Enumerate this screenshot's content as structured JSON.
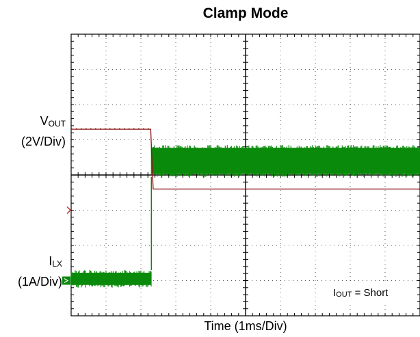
{
  "chart_data": {
    "type": "line",
    "title": "Clamp Mode",
    "xlabel": "Time  (1ms/Div)",
    "grid": true,
    "grid_divisions": {
      "x": 10,
      "y": 8
    },
    "x_unit": "ms",
    "xlim": [
      0,
      10
    ],
    "channels": [
      {
        "name_main": "V",
        "name_sub": "OUT",
        "scale": "(2V/Div)",
        "color": "#8b1a1a",
        "marker_color": "#c0392b",
        "segments": [
          {
            "x_start": 0.0,
            "x_end": 2.28,
            "level_div": 5.3
          },
          {
            "x_start": 2.28,
            "x_end": 2.35,
            "level_div_from": 5.3,
            "level_div_to": 3.6
          },
          {
            "x_start": 2.35,
            "x_end": 10.0,
            "level_div": 3.6
          }
        ]
      },
      {
        "name_main": "I",
        "name_sub": "LX",
        "scale": "(1A/Div)",
        "color": "#0a8a0a",
        "marker_color": "#0a8a0a",
        "segments": [
          {
            "x_start": 0.0,
            "x_end": 2.3,
            "level_div_low": 0.8,
            "level_div_high": 1.3
          },
          {
            "x_start": 2.3,
            "x_end": 10.0,
            "level_div_low": 3.95,
            "level_div_high": 4.85
          }
        ]
      }
    ],
    "annotation": {
      "main": "I",
      "sub": "OUT",
      "text": " = Short"
    }
  }
}
